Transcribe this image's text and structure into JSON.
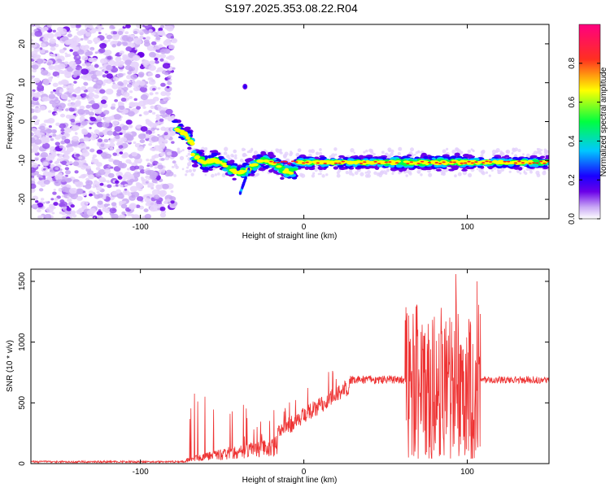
{
  "title": "S197.2025.353.08.22.R04",
  "chart_data": [
    {
      "type": "heatmap",
      "title": "S197.2025.353.08.22.R04",
      "xlabel": "Height of straight line (km)",
      "ylabel": "Frequency (Hz)",
      "xlim": [
        -167,
        150
      ],
      "ylim": [
        -25,
        25
      ],
      "x_ticks": [
        -100,
        0,
        100
      ],
      "y_ticks": [
        -20,
        -10,
        0,
        10,
        20
      ],
      "colorbar": {
        "label": "Normalized spectral amplitude",
        "range": [
          0,
          1
        ],
        "ticks": [
          0.0,
          0.2,
          0.4,
          0.6,
          0.8
        ],
        "colormap": [
          "#ffffff",
          "#c9a8f5",
          "#6a00e8",
          "#1a00ff",
          "#00c8ff",
          "#00ff40",
          "#ffff00",
          "#ff2020",
          "#ff0080"
        ]
      },
      "features": {
        "noise_region_x": [
          -167,
          -79
        ],
        "tonal_line_frequency": -10.5,
        "tonal_line_x": [
          -79,
          150
        ],
        "isolated_blob": {
          "x": -36,
          "y": 9
        }
      },
      "grid": false
    },
    {
      "type": "line",
      "xlabel": "Height of straight line (km)",
      "ylabel": "SNR (10 * v/v)",
      "xlim": [
        -167,
        150
      ],
      "ylim": [
        0,
        1600
      ],
      "x_ticks": [
        -100,
        0,
        100
      ],
      "y_ticks": [
        0,
        500,
        1000,
        1500
      ],
      "series": [
        {
          "color": "#ee3333",
          "segments": [
            {
              "x": [
                -167,
                -72
              ],
              "mean": 15,
              "noise": 8
            },
            {
              "x": [
                -72,
                -16
              ],
              "base": [
                40,
                200
              ],
              "burst": [
                200,
                580
              ]
            },
            {
              "x": [
                -16,
                28
              ],
              "mean": [
                250,
                640
              ],
              "noise": 70
            },
            {
              "x": [
                28,
                62
              ],
              "mean": 690,
              "noise": 35
            },
            {
              "x": [
                62,
                108
              ],
              "min": 40,
              "max": 1560
            },
            {
              "x": [
                108,
                150
              ],
              "mean": 690,
              "noise": 30
            }
          ],
          "peaks": [
            {
              "x": 62,
              "y": 1180
            },
            {
              "x": 93,
              "y": 1560
            },
            {
              "x": 106,
              "y": 1500
            }
          ]
        }
      ],
      "grid": false
    }
  ]
}
